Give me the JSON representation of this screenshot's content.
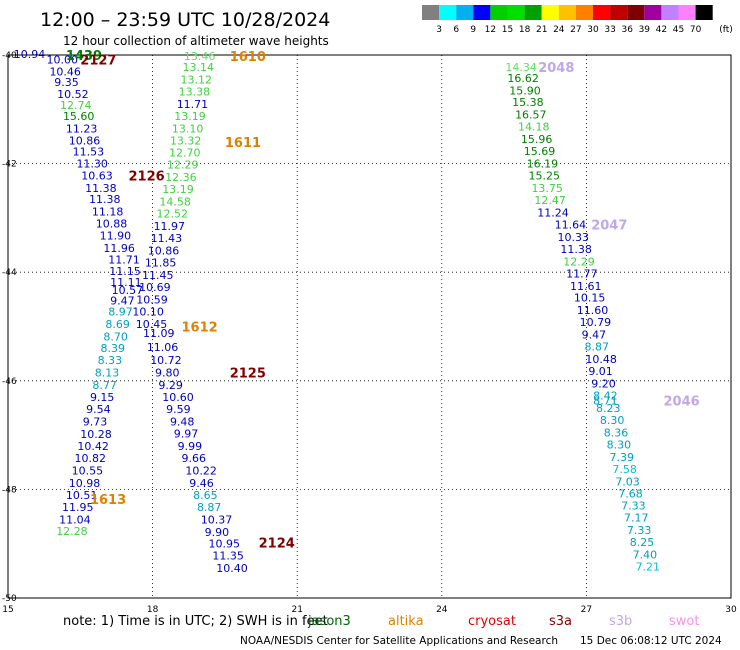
{
  "header": {
    "title": "12:00 – 23:59 UTC 10/28/2024",
    "subtitle": "12 hour collection of altimeter wave heights"
  },
  "colorbar": {
    "unit": "(ft)",
    "colors": [
      "#808080",
      "#00ffff",
      "#00b0f0",
      "#0000ff",
      "#00d000",
      "#00e000",
      "#00a000",
      "#ffff00",
      "#ffc000",
      "#ff8000",
      "#ff0000",
      "#c00000",
      "#800000",
      "#a000a0",
      "#c080ff",
      "#ff80ff",
      "#000000"
    ],
    "ticks": [
      "3",
      "6",
      "9",
      "12",
      "15",
      "18",
      "21",
      "24",
      "27",
      "30",
      "33",
      "36",
      "39",
      "42",
      "45",
      "70"
    ]
  },
  "axes": {
    "lat_ticks": [
      {
        "v": -40,
        "label": "-40"
      },
      {
        "v": -42,
        "label": "-42"
      },
      {
        "v": -44,
        "label": "-44"
      },
      {
        "v": -46,
        "label": "-46"
      },
      {
        "v": -48,
        "label": "-48"
      },
      {
        "v": -50,
        "label": "-50"
      }
    ],
    "lon_ticks": [
      {
        "v": 15,
        "label": "15"
      },
      {
        "v": 18,
        "label": "18"
      },
      {
        "v": 21,
        "label": "21"
      },
      {
        "v": 24,
        "label": "24"
      },
      {
        "v": 27,
        "label": "27"
      },
      {
        "v": 30,
        "label": "30"
      }
    ],
    "lon_range": [
      15,
      30
    ],
    "lat_range": [
      -40,
      -50
    ]
  },
  "tracks": [
    {
      "pass": "1439",
      "pass_lon": 16.2,
      "pass_lat": -40.0,
      "pass_color": "#008000",
      "items": [
        {
          "lon": 15.12,
          "lat": -39.98,
          "v": "10.94",
          "c": "#0000c0"
        }
      ]
    },
    {
      "pass": "2127",
      "pass_lon": 16.5,
      "pass_lat": -40.08,
      "pass_color": "#800000",
      "items": [
        {
          "lon": 15.8,
          "lat": -40.08,
          "v": "10.00",
          "c": "#0000c0"
        },
        {
          "lon": 15.86,
          "lat": -40.3,
          "v": "10.46",
          "c": "#0000c0"
        },
        {
          "lon": 15.96,
          "lat": -40.5,
          "v": "9.35",
          "c": "#0000c0"
        },
        {
          "lon": 16.02,
          "lat": -40.72,
          "v": "10.52",
          "c": "#0000c0"
        },
        {
          "lon": 16.08,
          "lat": -40.92,
          "v": "12.74",
          "c": "#40d040"
        },
        {
          "lon": 16.14,
          "lat": -41.12,
          "v": "15.60",
          "c": "#008000"
        },
        {
          "lon": 16.2,
          "lat": -41.35,
          "v": "11.23",
          "c": "#0000c0"
        },
        {
          "lon": 16.26,
          "lat": -41.57,
          "v": "10.86",
          "c": "#0000c0"
        },
        {
          "lon": 16.34,
          "lat": -41.78,
          "v": "11.53",
          "c": "#0000c0"
        },
        {
          "lon": 16.42,
          "lat": -42.0,
          "v": "11.30",
          "c": "#0000c0"
        },
        {
          "lon": 16.52,
          "lat": -42.22,
          "v": "10.63",
          "c": "#0000c0"
        },
        {
          "lon": 16.6,
          "lat": -42.45,
          "v": "11.38",
          "c": "#0000c0"
        },
        {
          "lon": 16.68,
          "lat": -42.65,
          "v": "11.38",
          "c": "#0000c0"
        },
        {
          "lon": 16.74,
          "lat": -42.88,
          "v": "11.18",
          "c": "#0000c0"
        },
        {
          "lon": 16.82,
          "lat": -43.1,
          "v": "10.88",
          "c": "#0000c0"
        },
        {
          "lon": 16.9,
          "lat": -43.32,
          "v": "11.90",
          "c": "#0000c0"
        },
        {
          "lon": 16.98,
          "lat": -43.55,
          "v": "11.96",
          "c": "#0000c0"
        },
        {
          "lon": 17.08,
          "lat": -43.77,
          "v": "11.71",
          "c": "#0000c0"
        },
        {
          "lon": 17.1,
          "lat": -43.98,
          "v": "11.15",
          "c": "#0000c0"
        },
        {
          "lon": 17.12,
          "lat": -44.18,
          "v": "11.11",
          "c": "#0000c0"
        },
        {
          "lon": 17.15,
          "lat": -44.33,
          "v": "10.57",
          "c": "#0000c0"
        },
        {
          "lon": 17.12,
          "lat": -44.52,
          "v": "9.47",
          "c": "#0000c0"
        },
        {
          "lon": 17.08,
          "lat": -44.72,
          "v": "8.97",
          "c": "#00a0c0"
        },
        {
          "lon": 17.02,
          "lat": -44.95,
          "v": "8.69",
          "c": "#00a0c0"
        },
        {
          "lon": 16.98,
          "lat": -45.18,
          "v": "8.70",
          "c": "#00a0c0"
        },
        {
          "lon": 16.92,
          "lat": -45.4,
          "v": "8.39",
          "c": "#00a0c0"
        },
        {
          "lon": 16.86,
          "lat": -45.62,
          "v": "8.33",
          "c": "#00a0c0"
        },
        {
          "lon": 16.8,
          "lat": -45.85,
          "v": "8.13",
          "c": "#00a0c0"
        },
        {
          "lon": 16.75,
          "lat": -46.08,
          "v": "8.77",
          "c": "#00a0c0"
        },
        {
          "lon": 16.7,
          "lat": -46.3,
          "v": "9.15",
          "c": "#0000c0"
        },
        {
          "lon": 16.62,
          "lat": -46.52,
          "v": "9.54",
          "c": "#0000c0"
        },
        {
          "lon": 16.55,
          "lat": -46.75,
          "v": "9.73",
          "c": "#0000c0"
        },
        {
          "lon": 16.5,
          "lat": -46.98,
          "v": "10.28",
          "c": "#0000c0"
        },
        {
          "lon": 16.44,
          "lat": -47.2,
          "v": "10.42",
          "c": "#0000c0"
        },
        {
          "lon": 16.38,
          "lat": -47.42,
          "v": "10.82",
          "c": "#0000c0"
        },
        {
          "lon": 16.32,
          "lat": -47.65,
          "v": "10.55",
          "c": "#0000c0"
        },
        {
          "lon": 16.26,
          "lat": -47.88,
          "v": "10.98",
          "c": "#0000c0"
        },
        {
          "lon": 16.2,
          "lat": -48.1,
          "v": "10.51",
          "c": "#0000c0"
        },
        {
          "lon": 16.12,
          "lat": -48.32,
          "v": "11.95",
          "c": "#0000c0"
        },
        {
          "lon": 16.06,
          "lat": -48.55,
          "v": "11.04",
          "c": "#0000c0"
        },
        {
          "lon": 16.0,
          "lat": -48.77,
          "v": "12.28",
          "c": "#40d040"
        }
      ]
    },
    {
      "pass": "2126",
      "pass_lon": 17.5,
      "pass_lat": -42.22,
      "pass_color": "#800000",
      "items": []
    },
    {
      "pass": "1613",
      "pass_lon": 16.7,
      "pass_lat": -48.18,
      "pass_color": "#e08000",
      "items": []
    },
    {
      "pass": "1610",
      "pass_lon": 19.6,
      "pass_lat": -40.02,
      "pass_color": "#e08000",
      "items": [
        {
          "lon": 18.65,
          "lat": -40.02,
          "v": "13.46",
          "c": "#60e060"
        },
        {
          "lon": 18.62,
          "lat": -40.22,
          "v": "13.14",
          "c": "#40d040"
        },
        {
          "lon": 18.58,
          "lat": -40.45,
          "v": "13.12",
          "c": "#40d040"
        },
        {
          "lon": 18.54,
          "lat": -40.67,
          "v": "13.38",
          "c": "#40d040"
        },
        {
          "lon": 18.5,
          "lat": -40.9,
          "v": "11.71",
          "c": "#0000c0"
        },
        {
          "lon": 18.45,
          "lat": -41.12,
          "v": "13.19",
          "c": "#40d040"
        },
        {
          "lon": 18.4,
          "lat": -41.35,
          "v": "13.10",
          "c": "#40d040"
        },
        {
          "lon": 18.36,
          "lat": -41.57,
          "v": "13.32",
          "c": "#40d040"
        },
        {
          "lon": 18.34,
          "lat": -41.8,
          "v": "12.70",
          "c": "#40d040"
        },
        {
          "lon": 18.3,
          "lat": -42.02,
          "v": "12.29",
          "c": "#40d040"
        },
        {
          "lon": 18.26,
          "lat": -42.25,
          "v": "12.36",
          "c": "#40d040"
        },
        {
          "lon": 18.2,
          "lat": -42.47,
          "v": "13.19",
          "c": "#40d040"
        },
        {
          "lon": 18.14,
          "lat": -42.7,
          "v": "14.58",
          "c": "#40d040"
        },
        {
          "lon": 18.08,
          "lat": -42.92,
          "v": "12.52",
          "c": "#40d040"
        },
        {
          "lon": 18.02,
          "lat": -43.15,
          "v": "11.97",
          "c": "#0000c0"
        },
        {
          "lon": 17.96,
          "lat": -43.37,
          "v": "11.43",
          "c": "#0000c0"
        },
        {
          "lon": 17.9,
          "lat": -43.6,
          "v": "10.86",
          "c": "#0000c0"
        },
        {
          "lon": 17.84,
          "lat": -43.82,
          "v": "11.85",
          "c": "#0000c0"
        },
        {
          "lon": 17.78,
          "lat": -44.05,
          "v": "11.45",
          "c": "#0000c0"
        },
        {
          "lon": 17.72,
          "lat": -44.27,
          "v": "10.69",
          "c": "#0000c0"
        },
        {
          "lon": 17.66,
          "lat": -44.5,
          "v": "10.59",
          "c": "#0000c0"
        },
        {
          "lon": 17.58,
          "lat": -44.72,
          "v": "10.10",
          "c": "#0000c0"
        },
        {
          "lon": 17.65,
          "lat": -44.95,
          "v": "10.45",
          "c": "#0000c0"
        },
        {
          "lon": 17.8,
          "lat": -45.12,
          "v": "11.09",
          "c": "#0000c0"
        },
        {
          "lon": 17.88,
          "lat": -45.38,
          "v": "11.06",
          "c": "#0000c0"
        },
        {
          "lon": 17.95,
          "lat": -45.62,
          "v": "10.72",
          "c": "#0000c0"
        },
        {
          "lon": 18.05,
          "lat": -45.85,
          "v": "9.80",
          "c": "#0000c0"
        },
        {
          "lon": 18.12,
          "lat": -46.08,
          "v": "9.29",
          "c": "#0000c0"
        },
        {
          "lon": 18.2,
          "lat": -46.3,
          "v": "10.60",
          "c": "#0000c0"
        },
        {
          "lon": 18.28,
          "lat": -46.52,
          "v": "9.59",
          "c": "#0000c0"
        },
        {
          "lon": 18.36,
          "lat": -46.75,
          "v": "9.48",
          "c": "#0000c0"
        },
        {
          "lon": 18.44,
          "lat": -46.97,
          "v": "9.97",
          "c": "#0000c0"
        },
        {
          "lon": 18.52,
          "lat": -47.2,
          "v": "9.99",
          "c": "#0000c0"
        },
        {
          "lon": 18.6,
          "lat": -47.42,
          "v": "9.66",
          "c": "#0000c0"
        },
        {
          "lon": 18.68,
          "lat": -47.65,
          "v": "10.22",
          "c": "#0000c0"
        },
        {
          "lon": 18.76,
          "lat": -47.88,
          "v": "9.46",
          "c": "#0000c0"
        },
        {
          "lon": 18.84,
          "lat": -48.1,
          "v": "8.65",
          "c": "#00a0c0"
        },
        {
          "lon": 18.92,
          "lat": -48.32,
          "v": "8.87",
          "c": "#00a0c0"
        },
        {
          "lon": 19.0,
          "lat": -48.55,
          "v": "10.37",
          "c": "#0000c0"
        },
        {
          "lon": 19.08,
          "lat": -48.78,
          "v": "9.90",
          "c": "#0000c0"
        },
        {
          "lon": 19.16,
          "lat": -49.0,
          "v": "10.95",
          "c": "#0000c0"
        },
        {
          "lon": 19.24,
          "lat": -49.22,
          "v": "11.35",
          "c": "#0000c0"
        },
        {
          "lon": 19.32,
          "lat": -49.45,
          "v": "10.40",
          "c": "#0000c0"
        }
      ]
    },
    {
      "pass": "1611",
      "pass_lon": 19.5,
      "pass_lat": -41.6,
      "pass_color": "#e08000",
      "items": []
    },
    {
      "pass": "1612",
      "pass_lon": 18.6,
      "pass_lat": -45.0,
      "pass_color": "#e08000",
      "items": []
    },
    {
      "pass": "2125",
      "pass_lon": 19.6,
      "pass_lat": -45.85,
      "pass_color": "#800000",
      "items": []
    },
    {
      "pass": "2124",
      "pass_lon": 20.2,
      "pass_lat": -48.98,
      "pass_color": "#800000",
      "items": []
    },
    {
      "pass": "2048",
      "pass_lon": 26.0,
      "pass_lat": -40.22,
      "pass_color": "#c0a8e8",
      "items": [
        {
          "lon": 25.32,
          "lat": -40.22,
          "v": "14.34",
          "c": "#60e060"
        },
        {
          "lon": 25.36,
          "lat": -40.42,
          "v": "16.62",
          "c": "#008000"
        },
        {
          "lon": 25.4,
          "lat": -40.65,
          "v": "15.90",
          "c": "#008000"
        },
        {
          "lon": 25.46,
          "lat": -40.87,
          "v": "15.38",
          "c": "#008000"
        },
        {
          "lon": 25.52,
          "lat": -41.1,
          "v": "16.57",
          "c": "#008000"
        },
        {
          "lon": 25.58,
          "lat": -41.32,
          "v": "14.18",
          "c": "#40d040"
        },
        {
          "lon": 25.64,
          "lat": -41.55,
          "v": "15.96",
          "c": "#008000"
        },
        {
          "lon": 25.7,
          "lat": -41.77,
          "v": "15.69",
          "c": "#008000"
        },
        {
          "lon": 25.76,
          "lat": -42.0,
          "v": "16.19",
          "c": "#008000"
        },
        {
          "lon": 25.8,
          "lat": -42.22,
          "v": "15.25",
          "c": "#008000"
        },
        {
          "lon": 25.86,
          "lat": -42.45,
          "v": "13.75",
          "c": "#40d040"
        },
        {
          "lon": 25.92,
          "lat": -42.67,
          "v": "12.47",
          "c": "#40d040"
        },
        {
          "lon": 25.98,
          "lat": -42.9,
          "v": "11.24",
          "c": "#0000c0"
        }
      ]
    },
    {
      "pass": "2047",
      "pass_lon": 27.1,
      "pass_lat": -43.12,
      "pass_color": "#c0a8e8",
      "items": [
        {
          "lon": 26.34,
          "lat": -43.12,
          "v": "11.64",
          "c": "#0000c0"
        },
        {
          "lon": 26.4,
          "lat": -43.35,
          "v": "10.33",
          "c": "#0000c0"
        },
        {
          "lon": 26.46,
          "lat": -43.57,
          "v": "11.38",
          "c": "#0000c0"
        },
        {
          "lon": 26.52,
          "lat": -43.8,
          "v": "12.29",
          "c": "#40d040"
        },
        {
          "lon": 26.58,
          "lat": -44.02,
          "v": "11.77",
          "c": "#0000c0"
        },
        {
          "lon": 26.66,
          "lat": -44.25,
          "v": "11.61",
          "c": "#0000c0"
        },
        {
          "lon": 26.74,
          "lat": -44.47,
          "v": "10.15",
          "c": "#0000c0"
        },
        {
          "lon": 26.8,
          "lat": -44.7,
          "v": "11.60",
          "c": "#0000c0"
        },
        {
          "lon": 26.86,
          "lat": -44.92,
          "v": "10.79",
          "c": "#0000c0"
        },
        {
          "lon": 26.9,
          "lat": -45.15,
          "v": "9.47",
          "c": "#0000c0"
        },
        {
          "lon": 26.96,
          "lat": -45.37,
          "v": "8.87",
          "c": "#00a0c0"
        },
        {
          "lon": 26.98,
          "lat": -45.6,
          "v": "10.48",
          "c": "#0000c0"
        },
        {
          "lon": 27.04,
          "lat": -45.82,
          "v": "9.01",
          "c": "#0000c0"
        },
        {
          "lon": 27.1,
          "lat": -46.05,
          "v": "9.20",
          "c": "#0000c0"
        },
        {
          "lon": 27.14,
          "lat": -46.27,
          "v": "8.42",
          "c": "#00a0c0"
        },
        {
          "lon": 27.14,
          "lat": -46.36,
          "v": "8.71",
          "c": "#00a0c0"
        },
        {
          "lon": 27.2,
          "lat": -46.5,
          "v": "8.23",
          "c": "#00a0c0"
        },
        {
          "lon": 27.28,
          "lat": -46.72,
          "v": "8.30",
          "c": "#00a0c0"
        },
        {
          "lon": 27.36,
          "lat": -46.95,
          "v": "8.36",
          "c": "#00a0c0"
        },
        {
          "lon": 27.42,
          "lat": -47.17,
          "v": "8.30",
          "c": "#00a0c0"
        },
        {
          "lon": 27.48,
          "lat": -47.4,
          "v": "7.39",
          "c": "#00a0c0"
        },
        {
          "lon": 27.54,
          "lat": -47.62,
          "v": "7.58",
          "c": "#00c0e0"
        },
        {
          "lon": 27.6,
          "lat": -47.85,
          "v": "7.03",
          "c": "#00a0c0"
        },
        {
          "lon": 27.66,
          "lat": -48.08,
          "v": "7.68",
          "c": "#00a0c0"
        },
        {
          "lon": 27.72,
          "lat": -48.3,
          "v": "7.33",
          "c": "#00a0c0"
        },
        {
          "lon": 27.78,
          "lat": -48.52,
          "v": "7.17",
          "c": "#00a0c0"
        },
        {
          "lon": 27.84,
          "lat": -48.75,
          "v": "7.33",
          "c": "#00a0c0"
        },
        {
          "lon": 27.9,
          "lat": -48.97,
          "v": "8.25",
          "c": "#00a0c0"
        },
        {
          "lon": 27.96,
          "lat": -49.2,
          "v": "7.40",
          "c": "#00a0c0"
        },
        {
          "lon": 28.02,
          "lat": -49.42,
          "v": "7.21",
          "c": "#00c0e0"
        }
      ]
    },
    {
      "pass": "2046",
      "pass_lon": 28.6,
      "pass_lat": -46.36,
      "pass_color": "#c0a8e8",
      "items": []
    }
  ],
  "footer": {
    "note": "note:  1) Time is in UTC;  2) SWH is in feet",
    "legend": [
      {
        "label": "jason3",
        "color": "#006400"
      },
      {
        "label": "altika",
        "color": "#e08000"
      },
      {
        "label": "cryosat",
        "color": "#e00000"
      },
      {
        "label": "s3a",
        "color": "#800000"
      },
      {
        "label": "s3b",
        "color": "#c0a8e8"
      },
      {
        "label": "swot",
        "color": "#ff90e0"
      }
    ],
    "credit": "NOAA/NESDIS Center for Satellite Applications and Research",
    "timestamp": "15 Dec 06:08:12 UTC 2024"
  }
}
